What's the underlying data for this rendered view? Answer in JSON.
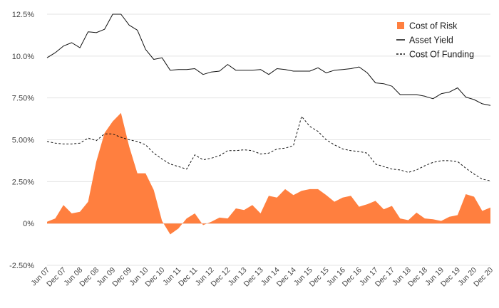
{
  "chart_data": {
    "type": "area",
    "title": "",
    "xlabel": "",
    "ylabel": "",
    "ylim": [
      -2.5,
      12.5
    ],
    "y_ticks": [
      "12.5%",
      "10.0%",
      "7.50%",
      "5.00%",
      "2.50%",
      "0%",
      "-2.50%"
    ],
    "y_tick_values": [
      12.5,
      10.0,
      7.5,
      5.0,
      2.5,
      0,
      -2.5
    ],
    "grid": "horizontal",
    "legend_position": "top-right",
    "x_labels": [
      "Jun 07",
      "Dec 07",
      "Jun 08",
      "Dec 08",
      "Jun 09",
      "Dec 09",
      "Jun 10",
      "Dec 10",
      "Jun 11",
      "Dec 11",
      "Jun 12",
      "Dec 12",
      "Jun 13",
      "Dec 13",
      "Jun 14",
      "Dec 14",
      "Jun 15",
      "Dec 15",
      "Jun 16",
      "Dec 16",
      "Jun 17",
      "Dec 17",
      "Jun 18",
      "Dec 18",
      "Jun 19",
      "Dec 19",
      "Jun 20",
      "Dec 20"
    ],
    "series": [
      {
        "name": "Cost of Risk",
        "style": "area",
        "color": "#FF7F3F",
        "values": [
          0.1,
          0.3,
          1.1,
          0.6,
          0.7,
          1.3,
          3.7,
          5.4,
          6.1,
          6.6,
          4.6,
          3.0,
          3.0,
          2.0,
          0.15,
          -0.65,
          -0.3,
          0.3,
          0.6,
          -0.1,
          0.1,
          0.35,
          0.3,
          0.9,
          0.8,
          1.1,
          0.6,
          1.65,
          1.55,
          2.05,
          1.7,
          1.95,
          2.05,
          2.05,
          1.7,
          1.3,
          1.55,
          1.65,
          1.0,
          1.15,
          1.35,
          0.85,
          1.05,
          0.3,
          0.2,
          0.65,
          0.3,
          0.25,
          0.15,
          0.4,
          0.5,
          1.75,
          1.6,
          0.75,
          0.95
        ]
      },
      {
        "name": "Asset Yield",
        "style": "solid",
        "color": "#111111",
        "values": [
          9.9,
          10.2,
          10.6,
          10.8,
          10.5,
          11.45,
          11.4,
          11.6,
          12.5,
          12.5,
          11.85,
          11.55,
          10.4,
          9.8,
          9.9,
          9.15,
          9.2,
          9.2,
          9.25,
          8.9,
          9.05,
          9.1,
          9.5,
          9.15,
          9.15,
          9.15,
          9.2,
          8.9,
          9.25,
          9.2,
          9.1,
          9.1,
          9.1,
          9.3,
          9.0,
          9.15,
          9.2,
          9.25,
          9.35,
          9.0,
          8.4,
          8.35,
          8.2,
          7.7,
          7.7,
          7.7,
          7.6,
          7.45,
          7.75,
          7.85,
          8.1,
          7.55,
          7.4,
          7.15,
          7.05
        ]
      },
      {
        "name": "Cost Of Funding",
        "style": "dashed",
        "color": "#111111",
        "values": [
          4.9,
          4.8,
          4.75,
          4.75,
          4.8,
          5.1,
          4.95,
          5.35,
          5.35,
          5.15,
          5.0,
          4.9,
          4.7,
          4.2,
          3.85,
          3.55,
          3.4,
          3.25,
          4.1,
          3.8,
          3.9,
          4.05,
          4.35,
          4.35,
          4.4,
          4.35,
          4.15,
          4.2,
          4.45,
          4.5,
          4.65,
          6.4,
          5.8,
          5.5,
          5.0,
          4.7,
          4.45,
          4.35,
          4.3,
          4.2,
          3.55,
          3.4,
          3.25,
          3.2,
          3.05,
          3.2,
          3.45,
          3.65,
          3.75,
          3.75,
          3.7,
          3.3,
          2.95,
          2.65,
          2.55
        ]
      }
    ]
  }
}
